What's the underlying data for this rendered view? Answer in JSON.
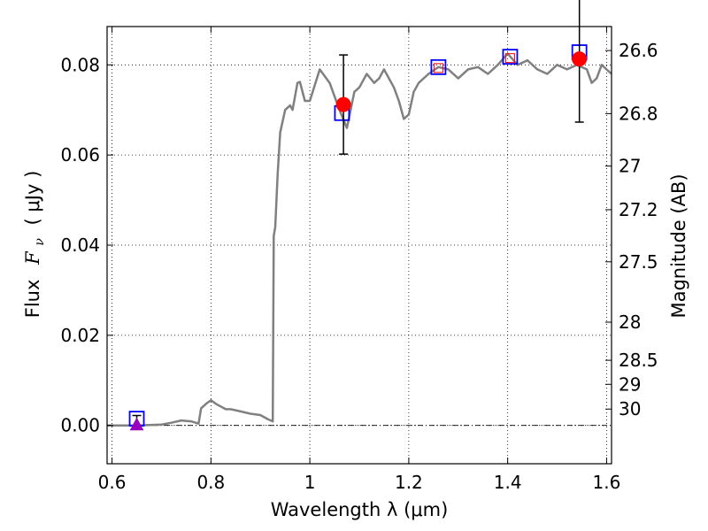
{
  "chart_data": {
    "type": "line",
    "xlabel": "Wavelength  λ (μm)",
    "ylabel_text": "Flux",
    "ylabel_math": "F",
    "ylabel_sub": "ν",
    "ylabel_unit": "( μJy )",
    "y2label": "Magnitude (AB)",
    "xlim": [
      0.59,
      1.61
    ],
    "ylim": [
      -0.0085,
      0.0885
    ],
    "xticks": [
      {
        "value": 0.6,
        "label": "0.6"
      },
      {
        "value": 0.8,
        "label": "0.8"
      },
      {
        "value": 1.0,
        "label": "1"
      },
      {
        "value": 1.2,
        "label": "1.2"
      },
      {
        "value": 1.4,
        "label": "1.4"
      },
      {
        "value": 1.6,
        "label": "1.6"
      }
    ],
    "yticks": [
      {
        "value": 0.0,
        "label": "0.00"
      },
      {
        "value": 0.02,
        "label": "0.02"
      },
      {
        "value": 0.04,
        "label": "0.04"
      },
      {
        "value": 0.06,
        "label": "0.06"
      },
      {
        "value": 0.08,
        "label": "0.08"
      }
    ],
    "y2ticks": [
      {
        "mag": 26.6,
        "label": "26.6"
      },
      {
        "mag": 26.8,
        "label": "26.8"
      },
      {
        "mag": 27.0,
        "label": "27"
      },
      {
        "mag": 27.2,
        "label": "27.2"
      },
      {
        "mag": 27.5,
        "label": "27.5"
      },
      {
        "mag": 28.0,
        "label": "28"
      },
      {
        "mag": 28.5,
        "label": "28.5"
      },
      {
        "mag": 29.0,
        "label": "29"
      },
      {
        "mag": 30.0,
        "label": "30"
      }
    ],
    "grid": true,
    "zero_line": true,
    "series": [
      {
        "kind": "model-spectrum",
        "color": "#808080",
        "points": [
          [
            0.59,
            0.0
          ],
          [
            0.65,
            0.0
          ],
          [
            0.7,
            0.0002
          ],
          [
            0.72,
            0.0006
          ],
          [
            0.74,
            0.0011
          ],
          [
            0.76,
            0.0009
          ],
          [
            0.775,
            0.0004
          ],
          [
            0.78,
            0.0038
          ],
          [
            0.79,
            0.0048
          ],
          [
            0.8,
            0.0056
          ],
          [
            0.81,
            0.0048
          ],
          [
            0.82,
            0.0042
          ],
          [
            0.83,
            0.0036
          ],
          [
            0.84,
            0.0036
          ],
          [
            0.86,
            0.0031
          ],
          [
            0.88,
            0.0026
          ],
          [
            0.9,
            0.0023
          ],
          [
            0.915,
            0.0014
          ],
          [
            0.925,
            0.0009
          ],
          [
            0.927,
            0.042
          ],
          [
            0.93,
            0.044
          ],
          [
            0.935,
            0.056
          ],
          [
            0.94,
            0.065
          ],
          [
            0.95,
            0.07
          ],
          [
            0.96,
            0.071
          ],
          [
            0.965,
            0.07
          ],
          [
            0.975,
            0.076
          ],
          [
            0.98,
            0.0762
          ],
          [
            0.99,
            0.072
          ],
          [
            1.0,
            0.072
          ],
          [
            1.02,
            0.079
          ],
          [
            1.04,
            0.076
          ],
          [
            1.06,
            0.07
          ],
          [
            1.075,
            0.066
          ],
          [
            1.09,
            0.074
          ],
          [
            1.1,
            0.075
          ],
          [
            1.115,
            0.078
          ],
          [
            1.13,
            0.076
          ],
          [
            1.14,
            0.077
          ],
          [
            1.15,
            0.079
          ],
          [
            1.16,
            0.077
          ],
          [
            1.17,
            0.075
          ],
          [
            1.18,
            0.072
          ],
          [
            1.19,
            0.068
          ],
          [
            1.2,
            0.069
          ],
          [
            1.21,
            0.074
          ],
          [
            1.22,
            0.076
          ],
          [
            1.24,
            0.078
          ],
          [
            1.26,
            0.0795
          ],
          [
            1.28,
            0.079
          ],
          [
            1.3,
            0.077
          ],
          [
            1.32,
            0.079
          ],
          [
            1.34,
            0.0795
          ],
          [
            1.36,
            0.078
          ],
          [
            1.38,
            0.08
          ],
          [
            1.4,
            0.0825
          ],
          [
            1.42,
            0.08
          ],
          [
            1.44,
            0.081
          ],
          [
            1.46,
            0.079
          ],
          [
            1.48,
            0.078
          ],
          [
            1.5,
            0.08
          ],
          [
            1.52,
            0.079
          ],
          [
            1.54,
            0.08
          ],
          [
            1.56,
            0.079
          ],
          [
            1.57,
            0.076
          ],
          [
            1.58,
            0.077
          ],
          [
            1.59,
            0.08
          ],
          [
            1.61,
            0.078
          ]
        ]
      },
      {
        "kind": "model-photometry",
        "marker": "square",
        "color": "#0000ff",
        "points": [
          [
            0.65,
            0.0015
          ],
          [
            1.065,
            0.0693
          ],
          [
            1.26,
            0.0795
          ],
          [
            1.405,
            0.0818
          ],
          [
            1.545,
            0.0828
          ]
        ]
      },
      {
        "kind": "model-photometry-inner",
        "marker": "square",
        "color": "#ff0000",
        "points": [
          [
            1.26,
            0.0793
          ],
          [
            1.405,
            0.0815
          ]
        ]
      },
      {
        "kind": "observed",
        "marker": "circle",
        "color": "#ff0000",
        "points": [
          [
            1.068,
            0.0712,
            0.011
          ],
          [
            1.545,
            0.0813,
            0.014
          ]
        ]
      },
      {
        "kind": "upper-limit",
        "marker": "triangle",
        "color": "#9900bb",
        "points": [
          [
            0.65,
            0.0,
            0.0022
          ]
        ]
      }
    ]
  }
}
